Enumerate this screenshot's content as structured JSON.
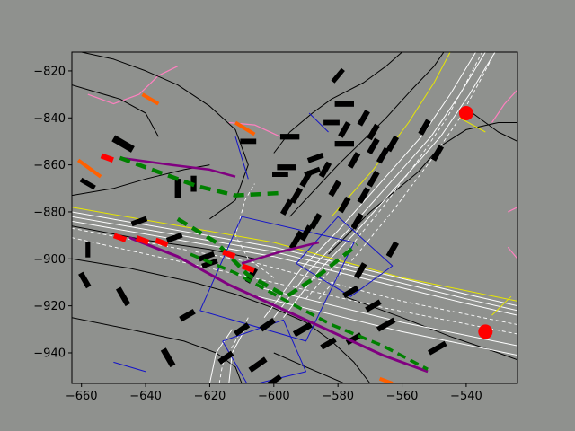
{
  "figure": {
    "background": "#8f918e",
    "axes_facecolor": "#8f918e"
  },
  "chart_data": {
    "type": "scatter",
    "title": "",
    "xlabel": "",
    "ylabel": "",
    "xlim": [
      -663,
      -524
    ],
    "ylim": [
      -953,
      -812
    ],
    "grid": false,
    "x_ticks": [
      -660,
      -640,
      -620,
      -600,
      -580,
      -560,
      -540
    ],
    "y_ticks": [
      -820,
      -840,
      -860,
      -880,
      -900,
      -920,
      -940
    ],
    "x_tick_labels": [
      "−660",
      "−640",
      "−620",
      "−600",
      "−580",
      "−560",
      "−540"
    ],
    "y_tick_labels": [
      "−820",
      "−840",
      "−860",
      "−880",
      "−900",
      "−920",
      "−940"
    ],
    "colors": {
      "lane_white": "#ffffff",
      "road_edge": "#000000",
      "center_yellow": "#e8e800",
      "crosswalk": "#1414c8",
      "sidewalk": "#ff80c0",
      "planned_path": "#008000",
      "history_path": "#800080",
      "vehicles": "#000000",
      "red_agents": "#ff0000",
      "orange_agents": "#ff6000"
    },
    "road_edges": [
      [
        [
          -663,
          -886
        ],
        [
          -640,
          -892
        ],
        [
          -620,
          -896
        ],
        [
          -606,
          -900
        ]
      ],
      [
        [
          -663,
          -900
        ],
        [
          -645,
          -904
        ],
        [
          -625,
          -910
        ],
        [
          -612,
          -915
        ],
        [
          -600,
          -921
        ],
        [
          -590,
          -927
        ],
        [
          -582,
          -935
        ],
        [
          -575,
          -944
        ],
        [
          -570,
          -953
        ]
      ],
      [
        [
          -663,
          -925
        ],
        [
          -645,
          -930
        ],
        [
          -628,
          -935
        ],
        [
          -618,
          -940
        ],
        [
          -612,
          -946
        ],
        [
          -610,
          -953
        ]
      ],
      [
        [
          -600,
          -940
        ],
        [
          -590,
          -946
        ],
        [
          -578,
          -953
        ]
      ],
      [
        [
          -578,
          -916
        ],
        [
          -560,
          -925
        ],
        [
          -545,
          -933
        ],
        [
          -530,
          -940
        ],
        [
          -524,
          -943
        ]
      ],
      [
        [
          -583,
          -898
        ],
        [
          -570,
          -880
        ],
        [
          -555,
          -863
        ],
        [
          -548,
          -852
        ],
        [
          -540,
          -845
        ],
        [
          -530,
          -842
        ],
        [
          -524,
          -842
        ]
      ],
      [
        [
          -595,
          -882
        ],
        [
          -580,
          -860
        ],
        [
          -565,
          -840
        ],
        [
          -557,
          -828
        ],
        [
          -550,
          -818
        ],
        [
          -547,
          -812
        ]
      ],
      [
        [
          -620,
          -883
        ],
        [
          -612,
          -875
        ],
        [
          -608,
          -860
        ],
        [
          -612,
          -845
        ],
        [
          -620,
          -835
        ],
        [
          -630,
          -826
        ],
        [
          -640,
          -820
        ],
        [
          -650,
          -815
        ],
        [
          -660,
          -812
        ]
      ],
      [
        [
          -663,
          -873
        ],
        [
          -650,
          -870
        ],
        [
          -640,
          -866
        ],
        [
          -628,
          -862
        ],
        [
          -620,
          -860
        ]
      ],
      [
        [
          -600,
          -855
        ],
        [
          -595,
          -846
        ],
        [
          -588,
          -838
        ],
        [
          -582,
          -832
        ],
        [
          -572,
          -825
        ],
        [
          -565,
          -818
        ],
        [
          -560,
          -812
        ]
      ],
      [
        [
          -636,
          -848
        ],
        [
          -640,
          -838
        ],
        [
          -648,
          -832
        ],
        [
          -658,
          -828
        ],
        [
          -663,
          -826
        ]
      ],
      [
        [
          -538,
          -838
        ],
        [
          -530,
          -846
        ],
        [
          -524,
          -850
        ]
      ]
    ],
    "lane_white": [
      [
        [
          -663,
          -880
        ],
        [
          -600,
          -895
        ],
        [
          -540,
          -915
        ],
        [
          -524,
          -920
        ]
      ],
      [
        [
          -663,
          -882
        ],
        [
          -600,
          -897
        ],
        [
          -540,
          -917
        ],
        [
          -524,
          -922
        ]
      ],
      [
        [
          -663,
          -884
        ],
        [
          -600,
          -899
        ],
        [
          -540,
          -919
        ],
        [
          -524,
          -924
        ]
      ],
      [
        [
          -605,
          -912
        ],
        [
          -560,
          -927
        ],
        [
          -524,
          -937
        ]
      ],
      [
        [
          -605,
          -916
        ],
        [
          -560,
          -931
        ],
        [
          -524,
          -941
        ]
      ],
      [
        [
          -603,
          -925
        ],
        [
          -592,
          -905
        ],
        [
          -580,
          -888
        ],
        [
          -567,
          -868
        ],
        [
          -554,
          -848
        ],
        [
          -545,
          -830
        ],
        [
          -537,
          -812
        ]
      ],
      [
        [
          -600,
          -925
        ],
        [
          -589,
          -905
        ],
        [
          -577,
          -888
        ],
        [
          -564,
          -868
        ],
        [
          -551,
          -848
        ],
        [
          -542,
          -830
        ],
        [
          -534,
          -812
        ]
      ],
      [
        [
          -597,
          -925
        ],
        [
          -586,
          -905
        ],
        [
          -574,
          -888
        ],
        [
          -561,
          -868
        ],
        [
          -548,
          -848
        ],
        [
          -539,
          -830
        ],
        [
          -531,
          -812
        ]
      ],
      [
        [
          -613,
          -930
        ],
        [
          -618,
          -940
        ],
        [
          -620,
          -953
        ]
      ],
      [
        [
          -609,
          -930
        ],
        [
          -613,
          -940
        ],
        [
          -614,
          -953
        ]
      ]
    ],
    "lane_dashed": [
      [
        [
          -663,
          -887
        ],
        [
          -605,
          -902
        ],
        [
          -560,
          -918
        ],
        [
          -524,
          -928
        ]
      ],
      [
        [
          -663,
          -891
        ],
        [
          -610,
          -907
        ],
        [
          -565,
          -921
        ],
        [
          -524,
          -932
        ]
      ],
      [
        [
          -590,
          -917
        ],
        [
          -578,
          -898
        ],
        [
          -566,
          -878
        ],
        [
          -555,
          -858
        ],
        [
          -546,
          -840
        ],
        [
          -540,
          -825
        ],
        [
          -535,
          -812
        ]
      ],
      [
        [
          -586,
          -917
        ],
        [
          -574,
          -898
        ],
        [
          -562,
          -878
        ],
        [
          -551,
          -858
        ],
        [
          -542,
          -840
        ],
        [
          -536,
          -825
        ],
        [
          -531,
          -812
        ]
      ],
      [
        [
          -608,
          -925
        ],
        [
          -612,
          -935
        ],
        [
          -616,
          -945
        ],
        [
          -617,
          -953
        ]
      ],
      [
        [
          -600,
          -908
        ],
        [
          -608,
          -900
        ],
        [
          -612,
          -890
        ],
        [
          -609,
          -875
        ],
        [
          -606,
          -868
        ]
      ]
    ],
    "center_yellow": [
      [
        [
          -663,
          -878
        ],
        [
          -600,
          -893
        ],
        [
          -560,
          -908
        ],
        [
          -524,
          -918
        ]
      ],
      [
        [
          -582,
          -882
        ],
        [
          -569,
          -862
        ],
        [
          -558,
          -842
        ],
        [
          -550,
          -825
        ],
        [
          -545,
          -812
        ]
      ],
      [
        [
          -542,
          -840
        ],
        [
          -534,
          -846
        ]
      ],
      [
        [
          -532,
          -924
        ],
        [
          -526,
          -916
        ]
      ]
    ],
    "crosswalks": [
      [
        [
          -623,
          -922
        ],
        [
          -610,
          -882
        ],
        [
          -575,
          -893
        ],
        [
          -590,
          -935
        ]
      ],
      [
        [
          -616,
          -935
        ],
        [
          -597,
          -926
        ],
        [
          -590,
          -948
        ],
        [
          -608,
          -954
        ]
      ],
      [
        [
          -593,
          -902
        ],
        [
          -580,
          -882
        ],
        [
          -563,
          -903
        ],
        [
          -576,
          -916
        ]
      ],
      [
        [
          -650,
          -944
        ],
        [
          -640,
          -948
        ]
      ],
      [
        [
          -612,
          -848
        ],
        [
          -608,
          -866
        ]
      ],
      [
        [
          -589,
          -838
        ],
        [
          -583,
          -846
        ]
      ]
    ],
    "sidewalks": [
      [
        [
          -658,
          -830
        ],
        [
          -650,
          -834
        ],
        [
          -642,
          -830
        ],
        [
          -636,
          -822
        ],
        [
          -630,
          -818
        ]
      ],
      [
        [
          -614,
          -842
        ],
        [
          -606,
          -843
        ],
        [
          -598,
          -848
        ]
      ],
      [
        [
          -532,
          -842
        ],
        [
          -528,
          -834
        ],
        [
          -524,
          -828
        ]
      ],
      [
        [
          -527,
          -880
        ],
        [
          -524,
          -878
        ]
      ],
      [
        [
          -527,
          -895
        ],
        [
          -524,
          -900
        ]
      ]
    ],
    "planned_path": [
      [
        -648,
        -857
      ],
      [
        -636,
        -863
      ],
      [
        -624,
        -869
      ],
      [
        -612,
        -873
      ],
      [
        -598,
        -872
      ]
    ],
    "planned_path_2": [
      [
        -630,
        -883
      ],
      [
        -618,
        -893
      ],
      [
        -608,
        -907
      ],
      [
        -596,
        -916
      ],
      [
        -585,
        -906
      ],
      [
        -574,
        -894
      ]
    ],
    "planned_path_3": [
      [
        -626,
        -898
      ],
      [
        -612,
        -906
      ],
      [
        -596,
        -918
      ],
      [
        -582,
        -928
      ],
      [
        -566,
        -937
      ],
      [
        -552,
        -947
      ]
    ],
    "history_path": [
      [
        -648,
        -857
      ],
      [
        -632,
        -860
      ],
      [
        -620,
        -862
      ],
      [
        -612,
        -865
      ]
    ],
    "history_path_2": [
      [
        -645,
        -891
      ],
      [
        -630,
        -899
      ],
      [
        -614,
        -911
      ],
      [
        -598,
        -921
      ],
      [
        -582,
        -931
      ],
      [
        -566,
        -941
      ],
      [
        -552,
        -948
      ]
    ],
    "history_path_3": [
      [
        -610,
        -902
      ],
      [
        -598,
        -897
      ],
      [
        -586,
        -893
      ]
    ],
    "red_agents": [
      [
        -652,
        -857
      ],
      [
        -648,
        -891
      ],
      [
        -641,
        -892
      ],
      [
        -635,
        -893
      ],
      [
        -614,
        -898
      ],
      [
        -608,
        -904
      ]
    ],
    "red_circles": [
      [
        -540,
        -838
      ],
      [
        -534,
        -931
      ]
    ],
    "orange_segments": [
      [
        [
          -661,
          -858
        ],
        [
          -654,
          -865
        ]
      ],
      [
        [
          -641,
          -830
        ],
        [
          -636,
          -834
        ]
      ],
      [
        [
          -612,
          -842
        ],
        [
          -606,
          -847
        ]
      ],
      [
        [
          -567,
          -951
        ],
        [
          -563,
          -953
        ]
      ]
    ],
    "vehicles": [
      [
        -580,
        -822,
        5,
        2,
        -50
      ],
      [
        -578,
        -834,
        6,
        2.4,
        0
      ],
      [
        -582,
        -842,
        5,
        2.2,
        0
      ],
      [
        -578,
        -851,
        6,
        2.4,
        0
      ],
      [
        -587,
        -857,
        5,
        2.2,
        -20
      ],
      [
        -588,
        -863,
        5,
        2.2,
        -20
      ],
      [
        -620,
        -902,
        5,
        2.2,
        -20
      ],
      [
        -647,
        -851,
        7,
        3,
        30
      ],
      [
        -658,
        -868,
        5,
        2,
        30
      ],
      [
        -630,
        -870,
        6,
        2.5,
        90
      ],
      [
        -625,
        -868,
        5,
        2.4,
        90
      ],
      [
        -642,
        -884,
        5,
        2.2,
        -20
      ],
      [
        -631,
        -891,
        5,
        2.2,
        -20
      ],
      [
        -621,
        -899,
        5,
        2.2,
        -20
      ],
      [
        -658,
        -896,
        5,
        2,
        90
      ],
      [
        -659,
        -909,
        5,
        2.4,
        60
      ],
      [
        -647,
        -916,
        6,
        2.4,
        60
      ],
      [
        -627,
        -924,
        5,
        2.4,
        -30
      ],
      [
        -610,
        -930,
        5,
        2.4,
        -35
      ],
      [
        -602,
        -928,
        5,
        2.4,
        -35
      ],
      [
        -615,
        -942,
        5,
        2.4,
        -35
      ],
      [
        -605,
        -945,
        6,
        2.4,
        -35
      ],
      [
        -600,
        -952,
        5,
        2.2,
        -35
      ],
      [
        -633,
        -942,
        6,
        2.6,
        60
      ],
      [
        -591,
        -930,
        6,
        2.6,
        -30
      ],
      [
        -583,
        -936,
        5,
        2.3,
        -30
      ],
      [
        -575,
        -934,
        5,
        2.3,
        -30
      ],
      [
        -565,
        -928,
        6,
        2.3,
        -30
      ],
      [
        -549,
        -938,
        6,
        2.3,
        -30
      ],
      [
        -576,
        -914,
        5,
        2.3,
        -30
      ],
      [
        -569,
        -920,
        5,
        2.3,
        -30
      ],
      [
        -590,
        -889,
        5,
        2.4,
        -60
      ],
      [
        -596,
        -878,
        5,
        2.4,
        -60
      ],
      [
        -593,
        -873,
        5,
        2.4,
        -60
      ],
      [
        -590,
        -866,
        5,
        2.4,
        -60
      ],
      [
        -584,
        -862,
        5,
        2.4,
        -60
      ],
      [
        -581,
        -870,
        5,
        2.4,
        -60
      ],
      [
        -578,
        -877,
        5,
        2.4,
        -60
      ],
      [
        -574,
        -884,
        5,
        2.4,
        -60
      ],
      [
        -572,
        -873,
        5,
        2.4,
        -60
      ],
      [
        -569,
        -866,
        5,
        2.4,
        -60
      ],
      [
        -566,
        -856,
        5,
        2.4,
        -60
      ],
      [
        -563,
        -851,
        5,
        2.4,
        -60
      ],
      [
        -569,
        -852,
        5,
        2.4,
        -60
      ],
      [
        -575,
        -858,
        5,
        2.4,
        -60
      ],
      [
        -578,
        -845,
        5,
        2.4,
        -60
      ],
      [
        -572,
        -840,
        5,
        2.4,
        -60
      ],
      [
        -569,
        -846,
        5,
        2.4,
        -60
      ],
      [
        -553,
        -844,
        5,
        2.4,
        -60
      ],
      [
        -549,
        -855,
        5,
        2.4,
        -60
      ],
      [
        -563,
        -896,
        5,
        2.4,
        -60
      ],
      [
        -573,
        -905,
        5,
        2.4,
        -60
      ],
      [
        -593,
        -892,
        6,
        2.4,
        -60
      ],
      [
        -587,
        -884,
        5,
        2.4,
        -60
      ],
      [
        -607,
        -907,
        5,
        2.4,
        -60
      ],
      [
        -595,
        -848,
        6,
        2.4,
        0
      ],
      [
        -596,
        -861,
        6,
        2.4,
        0
      ],
      [
        -598,
        -864,
        5,
        2.2,
        0
      ],
      [
        -608,
        -850,
        5,
        2.2,
        0
      ]
    ]
  }
}
